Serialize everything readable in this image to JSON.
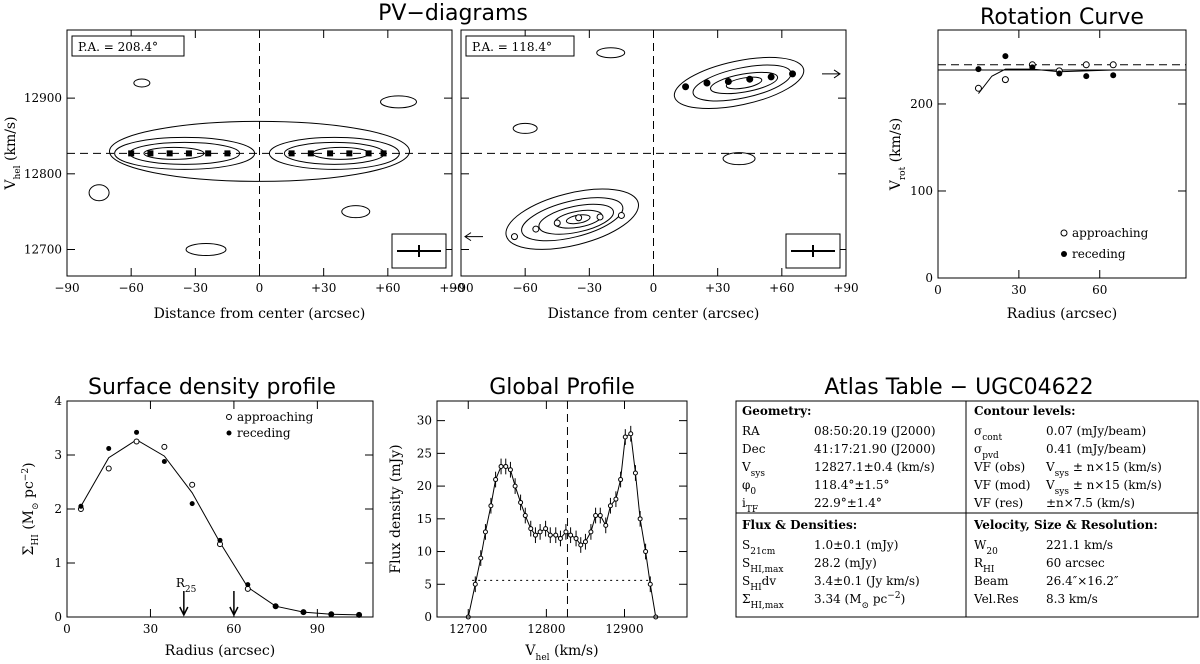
{
  "figure": {
    "titles": {
      "pv": "PV−diagrams",
      "rot": "Rotation Curve",
      "sd": "Surface density profile",
      "gp": "Global Profile",
      "atlas": "Atlas Table − UGC04622"
    }
  },
  "chart_data": [
    {
      "id": "pv1",
      "type": "contour",
      "annotation": "P.A. = 208.4°",
      "xlabel": "Distance from center (arcsec)",
      "ylabel": "V",
      "ylabel_sub": "hel",
      "ylabel_unit": " (km/s)",
      "xlim": [
        -90,
        90
      ],
      "ylim": [
        12665,
        12990
      ],
      "xticks": [
        -90,
        -60,
        -30,
        0,
        30,
        60,
        90
      ],
      "xtick_labels": [
        "−90",
        "−60",
        "−30",
        "0",
        "+30",
        "+60",
        "+90"
      ],
      "yticks": [
        12700,
        12800,
        12900
      ],
      "ytick_labels": [
        "12700",
        "12800",
        "12900"
      ],
      "vsys": 12827,
      "points": [
        {
          "x": -60,
          "y": 12827
        },
        {
          "x": -51,
          "y": 12827
        },
        {
          "x": -42,
          "y": 12827
        },
        {
          "x": -33,
          "y": 12827
        },
        {
          "x": -24,
          "y": 12827
        },
        {
          "x": -15,
          "y": 12827
        },
        {
          "x": 15,
          "y": 12827
        },
        {
          "x": 24,
          "y": 12827
        },
        {
          "x": 33,
          "y": 12827
        },
        {
          "x": 42,
          "y": 12827
        },
        {
          "x": 51,
          "y": 12827
        },
        {
          "x": 58,
          "y": 12827
        }
      ]
    },
    {
      "id": "pv2",
      "type": "contour",
      "annotation": "P.A. = 118.4°",
      "xlabel": "Distance from center (arcsec)",
      "xlim": [
        -90,
        90
      ],
      "ylim": [
        12665,
        12990
      ],
      "xticks": [
        -90,
        -60,
        -30,
        0,
        30,
        60,
        90
      ],
      "xtick_labels": [
        "−90",
        "−60",
        "−30",
        "0",
        "+30",
        "+60",
        "+90"
      ],
      "vsys": 12827,
      "points": [
        {
          "x": -65,
          "y": 12717
        },
        {
          "x": -55,
          "y": 12727
        },
        {
          "x": -45,
          "y": 12735
        },
        {
          "x": -35,
          "y": 12742
        },
        {
          "x": -25,
          "y": 12743
        },
        {
          "x": -15,
          "y": 12745
        },
        {
          "x": 15,
          "y": 12915
        },
        {
          "x": 25,
          "y": 12920
        },
        {
          "x": 35,
          "y": 12922
        },
        {
          "x": 45,
          "y": 12925
        },
        {
          "x": 55,
          "y": 12928
        },
        {
          "x": 65,
          "y": 12932
        }
      ]
    },
    {
      "id": "rotation",
      "type": "line",
      "xlabel": "Radius (arcsec)",
      "ylabel": "V",
      "ylabel_sub": "rot",
      "ylabel_unit": " (km/s)",
      "xlim": [
        0,
        92
      ],
      "ylim": [
        0,
        285
      ],
      "xticks": [
        0,
        30,
        60
      ],
      "yticks": [
        0,
        100,
        200
      ],
      "curve": [
        [
          15,
          212
        ],
        [
          20,
          232
        ],
        [
          25,
          240
        ],
        [
          35,
          240
        ],
        [
          45,
          237
        ],
        [
          55,
          238
        ],
        [
          65,
          239
        ]
      ],
      "approaching": [
        [
          15,
          218
        ],
        [
          25,
          228
        ],
        [
          35,
          245
        ],
        [
          45,
          238
        ],
        [
          55,
          245
        ],
        [
          65,
          245
        ]
      ],
      "receding": [
        [
          15,
          240
        ],
        [
          25,
          255
        ],
        [
          35,
          242
        ],
        [
          45,
          235
        ],
        [
          55,
          232
        ],
        [
          65,
          233
        ]
      ],
      "hlines": [
        239,
        245
      ],
      "legend": [
        "approaching",
        "receding"
      ]
    },
    {
      "id": "surface_density",
      "type": "line",
      "xlabel": "Radius (arcsec)",
      "ylabel": "Σ",
      "ylabel_sub": "HI",
      "ylabel_unit": " (M",
      "ylabel_unit2": " pc",
      "ylabel_sup": "−2",
      "xlim": [
        0,
        110
      ],
      "ylim": [
        0,
        4
      ],
      "xticks": [
        0,
        30,
        60,
        90
      ],
      "yticks": [
        0,
        1,
        2,
        3,
        4
      ],
      "curve": [
        [
          5,
          2.05
        ],
        [
          15,
          2.95
        ],
        [
          25,
          3.28
        ],
        [
          35,
          2.98
        ],
        [
          45,
          2.3
        ],
        [
          55,
          1.38
        ],
        [
          65,
          0.55
        ],
        [
          75,
          0.2
        ],
        [
          85,
          0.09
        ],
        [
          95,
          0.05
        ],
        [
          105,
          0.04
        ]
      ],
      "approaching": [
        [
          5,
          2.0
        ],
        [
          15,
          2.75
        ],
        [
          25,
          3.25
        ],
        [
          35,
          3.15
        ],
        [
          45,
          2.45
        ],
        [
          55,
          1.35
        ],
        [
          65,
          0.52
        ],
        [
          75,
          0.2
        ],
        [
          85,
          0.09
        ],
        [
          95,
          0.05
        ],
        [
          105,
          0.04
        ]
      ],
      "receding": [
        [
          5,
          2.05
        ],
        [
          15,
          3.12
        ],
        [
          25,
          3.42
        ],
        [
          35,
          2.88
        ],
        [
          45,
          2.1
        ],
        [
          55,
          1.42
        ],
        [
          65,
          0.6
        ],
        [
          75,
          0.2
        ],
        [
          85,
          0.09
        ],
        [
          95,
          0.05
        ],
        [
          105,
          0.04
        ]
      ],
      "legend": [
        "approaching",
        "receding"
      ],
      "arrows": [
        {
          "x": 42,
          "label": "R",
          "label_sub": "25"
        },
        {
          "x": 60,
          "label": ""
        }
      ]
    },
    {
      "id": "global_profile",
      "type": "line",
      "xlabel": "V",
      "xlabel_sub": "hel",
      "xlabel_unit": " (km/s)",
      "ylabel": "Flux density (mJy)",
      "xlim": [
        12660,
        12980
      ],
      "ylim": [
        0,
        33
      ],
      "xticks": [
        12700,
        12800,
        12900
      ],
      "yticks": [
        0,
        5,
        10,
        15,
        20,
        25,
        30
      ],
      "vsys": 12827,
      "half_level": 5.6,
      "profile": [
        [
          12700,
          0
        ],
        [
          12709,
          5.0
        ],
        [
          12716,
          9.0
        ],
        [
          12722,
          13.0
        ],
        [
          12729,
          17.0
        ],
        [
          12735,
          21.0
        ],
        [
          12742,
          23.0
        ],
        [
          12748,
          23.0
        ],
        [
          12754,
          22.5
        ],
        [
          12760,
          20.0
        ],
        [
          12767,
          17.5
        ],
        [
          12773,
          15.5
        ],
        [
          12780,
          13.5
        ],
        [
          12786,
          12.5
        ],
        [
          12792,
          13.0
        ],
        [
          12799,
          13.5
        ],
        [
          12805,
          12.5
        ],
        [
          12812,
          12.5
        ],
        [
          12818,
          12.0
        ],
        [
          12825,
          13.0
        ],
        [
          12831,
          12.5
        ],
        [
          12838,
          12.0
        ],
        [
          12844,
          11.0
        ],
        [
          12850,
          11.5
        ],
        [
          12857,
          13.0
        ],
        [
          12863,
          15.5
        ],
        [
          12869,
          15.5
        ],
        [
          12876,
          14.0
        ],
        [
          12882,
          17.0
        ],
        [
          12889,
          18.0
        ],
        [
          12895,
          21.0
        ],
        [
          12901,
          27.5
        ],
        [
          12908,
          28.0
        ],
        [
          12914,
          22.0
        ],
        [
          12920,
          15.0
        ],
        [
          12927,
          10.0
        ],
        [
          12933,
          5.0
        ],
        [
          12940,
          0
        ]
      ]
    }
  ],
  "atlas": {
    "geometry": {
      "heading": "Geometry:",
      "rows": [
        {
          "key": "RA",
          "sub": "",
          "val": "08:50:20.19 (J2000)"
        },
        {
          "key": "Dec",
          "sub": "",
          "val": "41:17:21.90 (J2000)"
        },
        {
          "key": "V",
          "sub": "sys",
          "val": "12827.1±0.4 (km/s)"
        },
        {
          "key": "φ",
          "sub": "0",
          "val": "118.4°±1.5°"
        },
        {
          "key": "i",
          "sub": "TF",
          "val": "22.9°±1.4°"
        }
      ]
    },
    "contours": {
      "heading": "Contour levels:",
      "rows": [
        {
          "key": "σ",
          "sub": "cont",
          "val": "0.07 (mJy/beam)"
        },
        {
          "key": "σ",
          "sub": "pvd",
          "val": "0.41 (mJy/beam)"
        },
        {
          "key": "VF (obs)",
          "sub": "",
          "val": "V",
          "val_sub": "sys",
          "val_rest": " ± n×15 (km/s)"
        },
        {
          "key": "VF (mod)",
          "sub": "",
          "val": "V",
          "val_sub": "sys",
          "val_rest": " ± n×15 (km/s)"
        },
        {
          "key": "VF (res)",
          "sub": "",
          "val": "±n×7.5 (km/s)"
        }
      ]
    },
    "flux": {
      "heading": "Flux & Densities:",
      "rows": [
        {
          "key": "S",
          "sub": "21cm",
          "val": "1.0±0.1 (mJy)"
        },
        {
          "key": "S",
          "sub": "HI,max",
          "val": "28.2 (mJy)"
        },
        {
          "key": "S",
          "sub": "HI",
          "key2": "dv",
          "val": "3.4±0.1 (Jy km/s)"
        },
        {
          "key": "Σ",
          "sub": "HI,max",
          "val": "3.34 (M",
          "val_sub": "⊙",
          "val_rest": " pc",
          "val_sup": "−2",
          "val_end": ")"
        }
      ]
    },
    "velocity": {
      "heading": "Velocity, Size & Resolution:",
      "rows": [
        {
          "key": "W",
          "sub": "20",
          "val": "221.1 km/s"
        },
        {
          "key": "R",
          "sub": "HI",
          "val": "60 arcsec"
        },
        {
          "key": "Beam",
          "sub": "",
          "val": "26.4″×16.2″"
        },
        {
          "key": "Vel.Res",
          "sub": "",
          "val": "8.3 km/s"
        }
      ]
    }
  }
}
